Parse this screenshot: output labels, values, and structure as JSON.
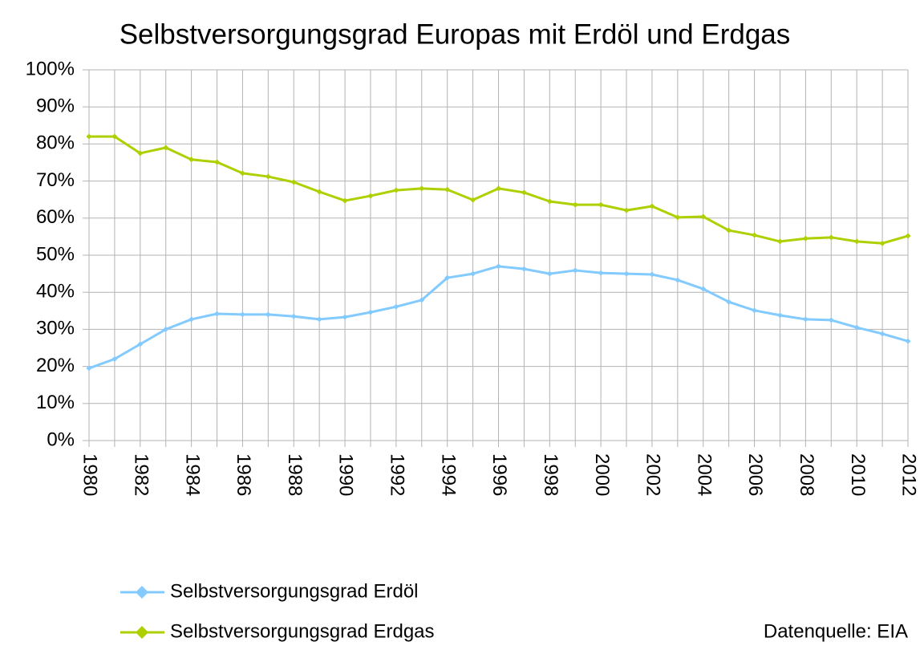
{
  "chart_data": {
    "type": "line",
    "title": "Selbstversorgungsgrad Europas mit Erdöl und Erdgas",
    "annotation": "Datenquelle: EIA",
    "categories": [
      "1980",
      null,
      "1982",
      null,
      "1984",
      null,
      "1986",
      null,
      "1988",
      null,
      "1990",
      null,
      "1992",
      null,
      "1994",
      null,
      "1996",
      null,
      "1998",
      null,
      "2000",
      null,
      "2002",
      null,
      "2004",
      null,
      "2006",
      null,
      "2008",
      null,
      "2010",
      null,
      "2012"
    ],
    "series": [
      {
        "name": "Selbstversorgungsgrad Erdöl",
        "color": "#83caff",
        "values": [
          19.5,
          22,
          26,
          30,
          32.7,
          34.2,
          34,
          34,
          33.5,
          32.7,
          33.3,
          34.6,
          36.1,
          37.9,
          43.9,
          45,
          47,
          46.3,
          45,
          45.9,
          45.2,
          45,
          44.8,
          43.3,
          40.9,
          37.4,
          35.1,
          33.8,
          32.7,
          32.5,
          30.5,
          28.8,
          26.8
        ]
      },
      {
        "name": "Selbstversorgungsgrad Erdgas",
        "color": "#aecf00",
        "values": [
          82,
          82,
          77.5,
          79,
          75.8,
          75.1,
          72.1,
          71.2,
          69.7,
          67.1,
          64.7,
          66,
          67.5,
          68,
          67.7,
          64.9,
          68,
          66.9,
          64.5,
          63.6,
          63.6,
          62.1,
          63.2,
          60.2,
          60.4,
          56.7,
          55.4,
          53.7,
          54.5,
          54.8,
          53.7,
          53.2,
          55.2
        ]
      }
    ],
    "ylim": [
      0,
      100
    ],
    "yticks": [
      {
        "value": 0,
        "label": "0%"
      },
      {
        "value": 10,
        "label": "10%"
      },
      {
        "value": 20,
        "label": "20%"
      },
      {
        "value": 30,
        "label": "30%"
      },
      {
        "value": 40,
        "label": "40%"
      },
      {
        "value": 50,
        "label": "50%"
      },
      {
        "value": 60,
        "label": "60%"
      },
      {
        "value": 70,
        "label": "70%"
      },
      {
        "value": 80,
        "label": "80%"
      },
      {
        "value": 90,
        "label": "90%"
      },
      {
        "value": 100,
        "label": "100%"
      }
    ],
    "grid": true
  }
}
